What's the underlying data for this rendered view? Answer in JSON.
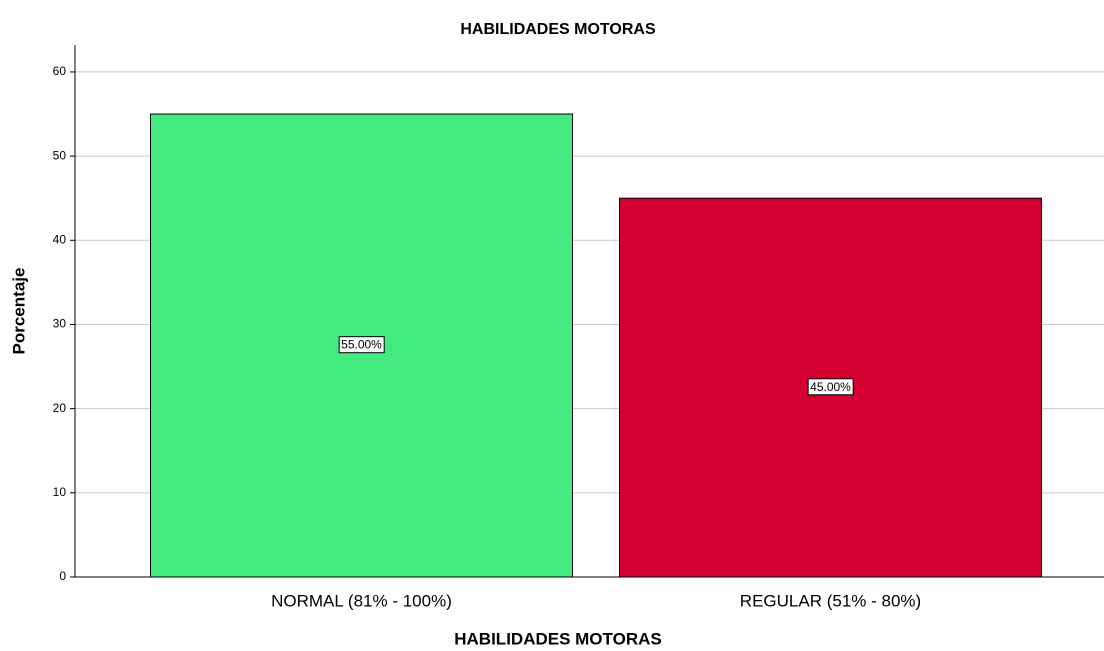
{
  "chart_data": {
    "type": "bar",
    "title": "HABILIDADES MOTORAS",
    "x_label": "HABILIDADES MOTORAS",
    "y_label": "Porcentaje",
    "categories": [
      "NORMAL (81% - 100%)",
      "REGULAR (51% - 80%)"
    ],
    "values": [
      55,
      45
    ],
    "value_labels": [
      "55.00%",
      "45.00%"
    ],
    "colors": [
      "#42ea7f",
      "#d50032"
    ],
    "ylim": [
      0,
      63.2
    ],
    "yticks": [
      0,
      10,
      20,
      30,
      40,
      50,
      60
    ],
    "grid": true
  }
}
